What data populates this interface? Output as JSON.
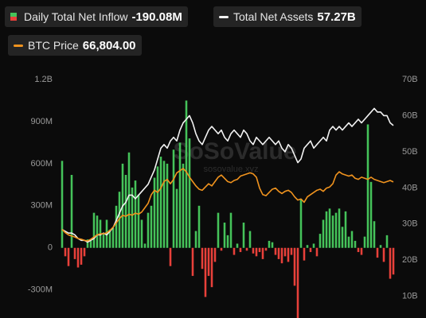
{
  "chart_data": {
    "type": "bar-line",
    "watermark": "SoSoValue",
    "watermark_sub": "sosovalue.xyz",
    "ylim": [
      -500,
      1200
    ],
    "yticks": [
      {
        "value": 1200,
        "label": "1.2B"
      },
      {
        "value": 900,
        "label": "900M"
      },
      {
        "value": 600,
        "label": "600M"
      },
      {
        "value": 300,
        "label": "300M"
      },
      0,
      {
        "value": -300,
        "label": "-300M"
      }
    ],
    "y2lim": [
      4,
      70
    ],
    "y2ticks": [
      {
        "value": 70,
        "label": "70B"
      },
      {
        "value": 60,
        "label": "60B"
      },
      {
        "value": 50,
        "label": "50B"
      },
      {
        "value": 40,
        "label": "40B"
      },
      {
        "value": 30,
        "label": "30B"
      },
      {
        "value": 20,
        "label": "20B"
      },
      {
        "value": 10,
        "label": "10B"
      }
    ],
    "y3lim": [
      4300,
      113900
    ],
    "grid": false,
    "series": [
      {
        "name": "Daily Total Net Inflow",
        "current": "-190.08M",
        "type": "bar",
        "axis": "y",
        "color": "#45c35a",
        "negative_color": "#e8403a",
        "values": [
          620,
          -60,
          -130,
          520,
          -80,
          -140,
          -120,
          -60,
          60,
          50,
          250,
          230,
          200,
          100,
          200,
          130,
          140,
          300,
          400,
          600,
          520,
          680,
          430,
          480,
          380,
          200,
          30,
          250,
          300,
          500,
          580,
          650,
          620,
          600,
          -130,
          700,
          420,
          750,
          600,
          1050,
          780,
          -200,
          120,
          300,
          -150,
          -350,
          -200,
          -280,
          -100,
          250,
          -20,
          180,
          90,
          250,
          -50,
          30,
          -30,
          180,
          -20,
          120,
          -40,
          -60,
          -30,
          -80,
          -20,
          50,
          40,
          -50,
          -80,
          -110,
          -60,
          -100,
          -50,
          -270,
          -500,
          350,
          -90,
          20,
          -30,
          30,
          -60,
          100,
          200,
          260,
          280,
          230,
          250,
          280,
          150,
          260,
          80,
          120,
          50,
          -30,
          -50,
          80,
          880,
          470,
          190,
          -70,
          20,
          -100,
          90,
          -220,
          -190.08
        ]
      },
      {
        "name": "Total Net Assets",
        "current": "57.27B",
        "type": "line",
        "axis": "y2",
        "color": "#f2f2f2",
        "values": [
          28.5,
          28,
          27.5,
          27.5,
          27,
          26,
          25.5,
          25.5,
          25,
          25.5,
          26,
          27,
          27,
          27.5,
          27,
          28,
          29,
          31,
          33,
          35,
          36,
          38,
          38,
          37,
          38,
          39,
          40,
          41,
          43,
          45,
          48,
          51,
          52,
          51,
          53,
          54,
          53,
          56,
          58,
          59,
          60,
          58,
          55,
          53,
          52,
          54,
          56,
          57,
          56,
          55,
          56,
          54,
          53,
          55,
          56,
          55,
          54,
          56,
          55,
          53,
          52,
          54,
          53,
          52,
          53,
          54,
          53,
          52,
          53,
          51,
          50,
          52,
          51,
          49,
          47,
          48,
          51,
          52,
          53,
          51,
          52,
          53,
          54,
          53,
          56,
          57,
          56,
          57,
          56,
          57,
          58,
          57,
          58,
          59,
          58,
          59,
          60,
          61,
          62,
          61,
          61,
          60,
          60,
          58,
          57.27
        ]
      },
      {
        "name": "BTC Price",
        "current": "66,804.00",
        "type": "line",
        "axis": "y3",
        "color": "#f0931e",
        "values": [
          45000,
          43500,
          42500,
          42000,
          41500,
          40800,
          40500,
          40000,
          39700,
          40500,
          41500,
          42500,
          43000,
          43000,
          43500,
          44500,
          46000,
          48000,
          50000,
          51500,
          51000,
          52000,
          51500,
          52500,
          52000,
          53000,
          55000,
          57000,
          61000,
          63000,
          62000,
          64000,
          67000,
          68000,
          66000,
          68000,
          71000,
          72000,
          73000,
          71500,
          69000,
          67000,
          65000,
          63500,
          63000,
          64500,
          66000,
          65000,
          67000,
          69000,
          70000,
          68500,
          67000,
          66500,
          67500,
          68000,
          69500,
          70000,
          70500,
          71000,
          70500,
          69000,
          64000,
          61000,
          60500,
          62000,
          63500,
          64000,
          62500,
          61500,
          62500,
          63000,
          62000,
          60000,
          58500,
          59000,
          57500,
          60000,
          61000,
          62000,
          63000,
          63500,
          62500,
          64000,
          64500,
          66000,
          70000,
          71500,
          70500,
          70000,
          69500,
          70000,
          68500,
          68000,
          69000,
          68500,
          68000,
          69000,
          68000,
          67500,
          67000,
          66500,
          67000,
          67500,
          66804
        ]
      }
    ]
  }
}
